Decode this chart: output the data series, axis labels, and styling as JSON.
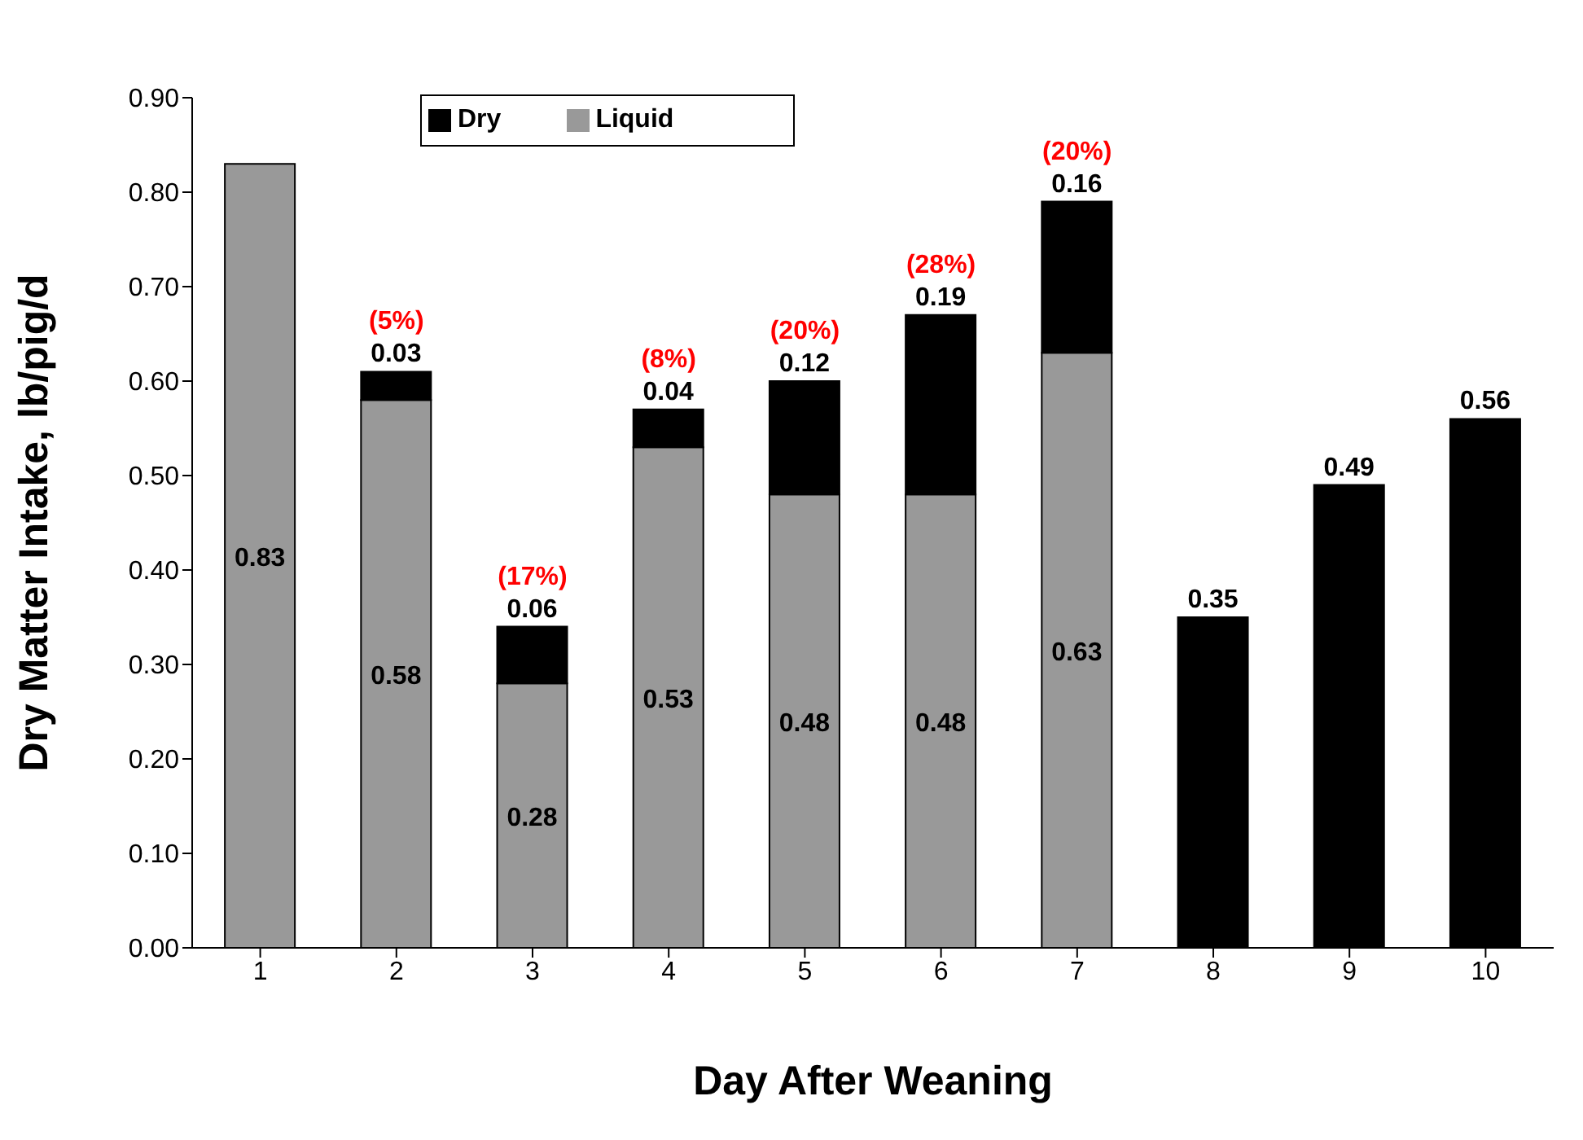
{
  "chart_data": {
    "type": "bar",
    "stacked": true,
    "xlabel": "Day After Weaning",
    "ylabel": "Dry Matter Intake, lb/pig/d",
    "categories": [
      "1",
      "2",
      "3",
      "4",
      "5",
      "6",
      "7",
      "8",
      "9",
      "10"
    ],
    "series": [
      {
        "name": "Liquid",
        "color": "#999999",
        "values": [
          0.83,
          0.58,
          0.28,
          0.53,
          0.48,
          0.48,
          0.63,
          null,
          null,
          null
        ],
        "value_labels": [
          "0.83",
          "0.58",
          "0.28",
          "0.53",
          "0.48",
          "0.48",
          "0.63",
          null,
          null,
          null
        ]
      },
      {
        "name": "Dry",
        "color": "#000000",
        "values": [
          null,
          0.03,
          0.06,
          0.04,
          0.12,
          0.19,
          0.16,
          0.35,
          0.49,
          0.56
        ],
        "value_labels": [
          null,
          "0.03",
          "0.06",
          "0.04",
          "0.12",
          "0.19",
          "0.16",
          "0.35",
          "0.49",
          "0.56"
        ]
      }
    ],
    "annotations": [
      {
        "text": "(5%)",
        "x": "2",
        "y": 0.61
      },
      {
        "text": "(17%)",
        "x": "3",
        "y": 0.34
      },
      {
        "text": "(8%)",
        "x": "4",
        "y": 0.57
      },
      {
        "text": "(20%)",
        "x": "5",
        "y": 0.6
      },
      {
        "text": "(28%)",
        "x": "6",
        "y": 0.67
      },
      {
        "text": "(20%)",
        "x": "7",
        "y": 0.79
      }
    ],
    "ylim": [
      0,
      0.9
    ],
    "yticks": [
      {
        "value": 0,
        "label": "0.00"
      },
      {
        "value": 0.1,
        "label": "0.10"
      },
      {
        "value": 0.2,
        "label": "0.20"
      },
      {
        "value": 0.3,
        "label": "0.30"
      },
      {
        "value": 0.4,
        "label": "0.40"
      },
      {
        "value": 0.5,
        "label": "0.50"
      },
      {
        "value": 0.6,
        "label": "0.60"
      },
      {
        "value": 0.7,
        "label": "0.70"
      },
      {
        "value": 0.8,
        "label": "0.80"
      },
      {
        "value": 0.9,
        "label": "0.90"
      }
    ],
    "grid": false,
    "legend": "top left"
  }
}
